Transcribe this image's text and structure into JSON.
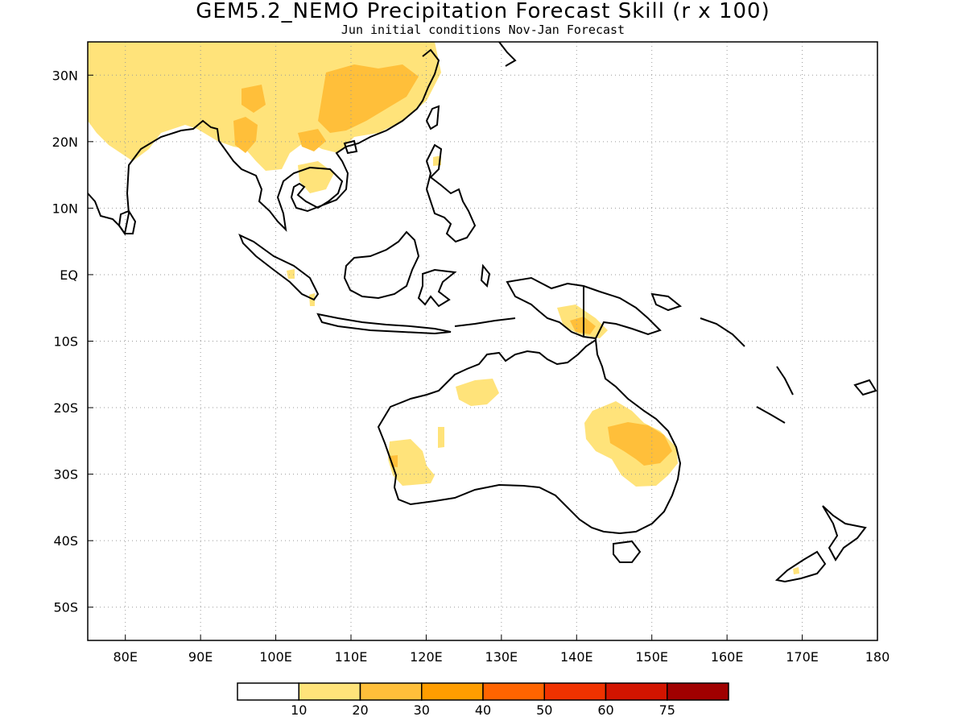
{
  "title": "GEM5.2_NEMO Precipitation Forecast Skill (r x 100)",
  "subtitle": "Jun initial conditions  Nov-Jan Forecast",
  "map": {
    "lon_range": [
      75,
      180
    ],
    "lat_range": [
      -55,
      35
    ],
    "lon_ticks": [
      "80E",
      "90E",
      "100E",
      "110E",
      "120E",
      "130E",
      "140E",
      "150E",
      "160E",
      "170E",
      "180"
    ],
    "lat_ticks": [
      "30N",
      "20N",
      "10N",
      "EQ",
      "10S",
      "20S",
      "30S",
      "40S",
      "50S"
    ],
    "gridlines": "dotted",
    "coastline_color": "#000000"
  },
  "colorbar": {
    "levels": [
      "10",
      "20",
      "30",
      "40",
      "50",
      "60",
      "75"
    ],
    "colors": [
      "#ffffff",
      "#ffe37a",
      "#ffbf3a",
      "#ff9d00",
      "#ff6400",
      "#f03200",
      "#d21400",
      "#a00000"
    ]
  },
  "skill_regions": [
    {
      "name": "south-asia-china",
      "level": "10-20",
      "color": "#ffe37a"
    },
    {
      "name": "south-china",
      "level": "20-30",
      "color": "#ffbf3a"
    },
    {
      "name": "indochina",
      "level": "20-30",
      "color": "#ffbf3a"
    },
    {
      "name": "new-guinea",
      "level": "20-30",
      "color": "#ffbf3a"
    },
    {
      "name": "nw-australia",
      "level": "10-20",
      "color": "#ffe37a"
    },
    {
      "name": "sw-australia",
      "level": "10-20",
      "color": "#ffe37a"
    },
    {
      "name": "queensland",
      "level": "20-30",
      "color": "#ffbf3a"
    }
  ]
}
